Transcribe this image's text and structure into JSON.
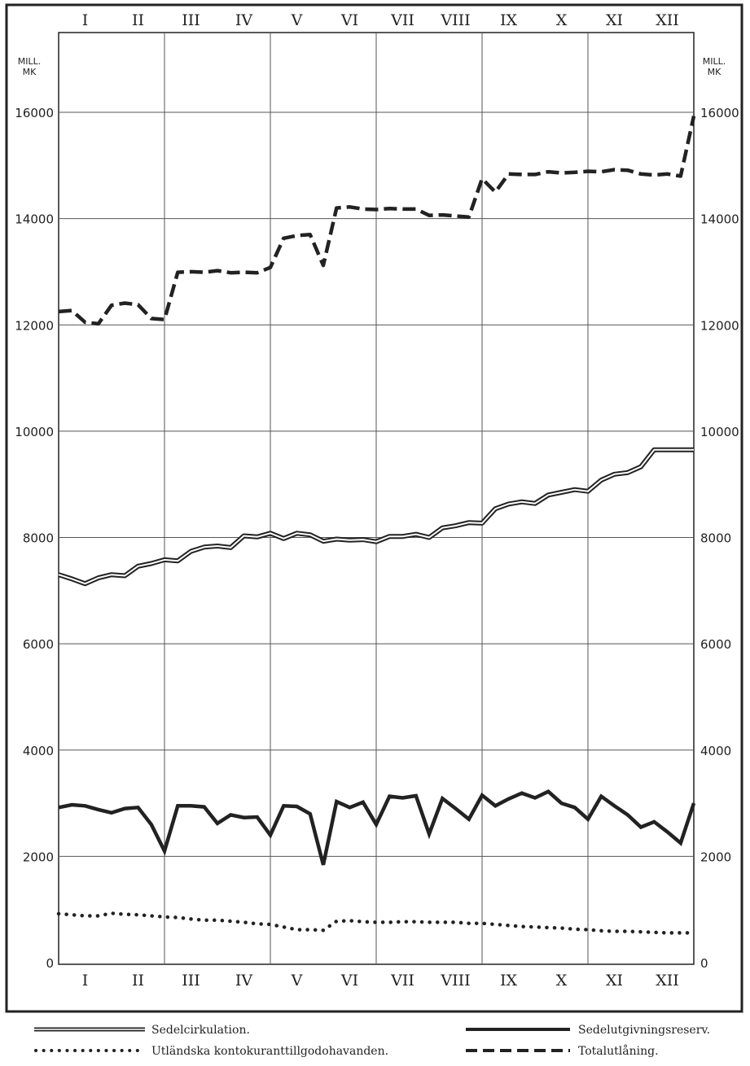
{
  "chart_data": {
    "type": "line",
    "y_unit_left": [
      "MILL.",
      "MK"
    ],
    "y_unit_right": [
      "MILL.",
      "MK"
    ],
    "ylim": [
      0,
      16000
    ],
    "y_ticks": [
      0,
      2000,
      4000,
      6000,
      8000,
      10000,
      12000,
      14000,
      16000
    ],
    "y_tick_labels_left": [
      "0",
      "2000",
      "4000",
      "6000",
      "8000",
      "10000",
      "12000",
      "14000",
      "16000"
    ],
    "y_tick_labels_right": [
      "0",
      "2000",
      "4000",
      "6000",
      "8000",
      "10000",
      "12000",
      "14000",
      "16000"
    ],
    "x_categories": [
      "I",
      "II",
      "III",
      "IV",
      "V",
      "VI",
      "VII",
      "VIII",
      "IX",
      "X",
      "XI",
      "XII"
    ],
    "xlim": [
      0,
      12
    ],
    "grid": true,
    "legend_position": "bottom",
    "series": [
      {
        "name": "Totalutlåning.",
        "style": "dashed",
        "x": [
          0,
          0.25,
          0.5,
          0.75,
          1.0,
          1.25,
          1.5,
          1.75,
          2.0,
          2.25,
          2.5,
          2.75,
          3.0,
          3.25,
          3.5,
          3.75,
          4.0,
          4.25,
          4.5,
          4.75,
          5.0,
          5.25,
          5.5,
          5.75,
          6.0,
          6.25,
          6.5,
          6.75,
          7.0,
          7.25,
          7.5,
          7.75,
          8.0,
          8.25,
          8.5,
          8.75,
          9.0,
          9.25,
          9.5,
          9.75,
          10.0,
          10.25,
          10.5,
          10.75,
          11.0,
          11.25,
          11.5,
          11.75,
          12.0
        ],
        "values": [
          12250,
          12270,
          12050,
          12020,
          12370,
          12410,
          12380,
          12120,
          12100,
          12990,
          13000,
          12990,
          13020,
          12980,
          12990,
          12980,
          13080,
          13630,
          13680,
          13700,
          13120,
          14200,
          14220,
          14180,
          14170,
          14190,
          14180,
          14180,
          14060,
          14070,
          14050,
          14030,
          14750,
          14500,
          14840,
          14830,
          14830,
          14880,
          14860,
          14870,
          14890,
          14880,
          14920,
          14910,
          14840,
          14820,
          14840,
          14800,
          15930
        ]
      },
      {
        "name": "Sedelcirkulation.",
        "style": "double",
        "x": [
          0,
          0.25,
          0.5,
          0.75,
          1.0,
          1.25,
          1.5,
          1.75,
          2.0,
          2.25,
          2.5,
          2.75,
          3.0,
          3.25,
          3.5,
          3.75,
          4.0,
          4.25,
          4.5,
          4.75,
          5.0,
          5.25,
          5.5,
          5.75,
          6.0,
          6.25,
          6.5,
          6.75,
          7.0,
          7.25,
          7.5,
          7.75,
          8.0,
          8.25,
          8.5,
          8.75,
          9.0,
          9.25,
          9.5,
          9.75,
          10.0,
          10.25,
          10.5,
          10.75,
          11.0,
          11.25,
          11.5,
          11.75,
          12.0
        ],
        "values": [
          7300,
          7220,
          7130,
          7240,
          7300,
          7280,
          7460,
          7510,
          7580,
          7560,
          7740,
          7820,
          7840,
          7810,
          8030,
          8010,
          8080,
          7980,
          8080,
          8050,
          7930,
          7970,
          7950,
          7960,
          7920,
          8020,
          8020,
          8060,
          8000,
          8180,
          8220,
          8280,
          8270,
          8540,
          8630,
          8670,
          8640,
          8800,
          8850,
          8900,
          8870,
          9080,
          9190,
          9220,
          9330,
          9650,
          9650,
          9650,
          9650
        ]
      },
      {
        "name": "Sedelutgivningsreserv.",
        "style": "solid",
        "x": [
          0,
          0.25,
          0.5,
          0.75,
          1.0,
          1.25,
          1.5,
          1.75,
          2.0,
          2.25,
          2.5,
          2.75,
          3.0,
          3.25,
          3.5,
          3.75,
          4.0,
          4.25,
          4.5,
          4.75,
          5.0,
          5.25,
          5.5,
          5.75,
          6.0,
          6.25,
          6.5,
          6.75,
          7.0,
          7.25,
          7.5,
          7.75,
          8.0,
          8.25,
          8.5,
          8.75,
          9.0,
          9.25,
          9.5,
          9.75,
          10.0,
          10.25,
          10.5,
          10.75,
          11.0,
          11.25,
          11.5,
          11.75,
          12.0
        ],
        "values": [
          2920,
          2970,
          2950,
          2880,
          2820,
          2900,
          2920,
          2600,
          2100,
          2950,
          2950,
          2930,
          2620,
          2780,
          2730,
          2740,
          2400,
          2950,
          2940,
          2800,
          1840,
          3030,
          2920,
          3020,
          2600,
          3130,
          3100,
          3140,
          2420,
          3090,
          2900,
          2700,
          3150,
          2950,
          3080,
          3190,
          3100,
          3220,
          3000,
          2920,
          2700,
          3130,
          2950,
          2780,
          2550,
          2650,
          2460,
          2250,
          3000
        ]
      },
      {
        "name": "Utländska kontokuranttillgodohavanden.",
        "style": "dotted",
        "x": [
          0,
          0.25,
          0.5,
          0.75,
          1.0,
          1.25,
          1.5,
          1.75,
          2.0,
          2.25,
          2.5,
          2.75,
          3.0,
          3.25,
          3.5,
          3.75,
          4.0,
          4.25,
          4.5,
          4.75,
          5.0,
          5.25,
          5.5,
          5.75,
          6.0,
          6.25,
          6.5,
          6.75,
          7.0,
          7.25,
          7.5,
          7.75,
          8.0,
          8.25,
          8.5,
          8.75,
          9.0,
          9.25,
          9.5,
          9.75,
          10.0,
          10.25,
          10.5,
          10.75,
          11.0,
          11.25,
          11.5,
          11.75,
          12.0
        ],
        "values": [
          920,
          900,
          880,
          880,
          930,
          910,
          900,
          880,
          860,
          850,
          820,
          800,
          800,
          780,
          760,
          730,
          720,
          670,
          620,
          620,
          610,
          780,
          790,
          770,
          760,
          760,
          770,
          770,
          760,
          760,
          760,
          740,
          740,
          720,
          700,
          680,
          670,
          660,
          650,
          630,
          620,
          600,
          590,
          590,
          580,
          570,
          560,
          560,
          560
        ]
      }
    ]
  },
  "legend": {
    "items": [
      {
        "label": "Sedelcirkulation.",
        "style": "double"
      },
      {
        "label": "Sedelutgivningsreserv.",
        "style": "solid"
      },
      {
        "label": "Utländska kontokuranttillgodohavanden.",
        "style": "dotted"
      },
      {
        "label": "Totalutlåning.",
        "style": "dashed"
      }
    ]
  }
}
